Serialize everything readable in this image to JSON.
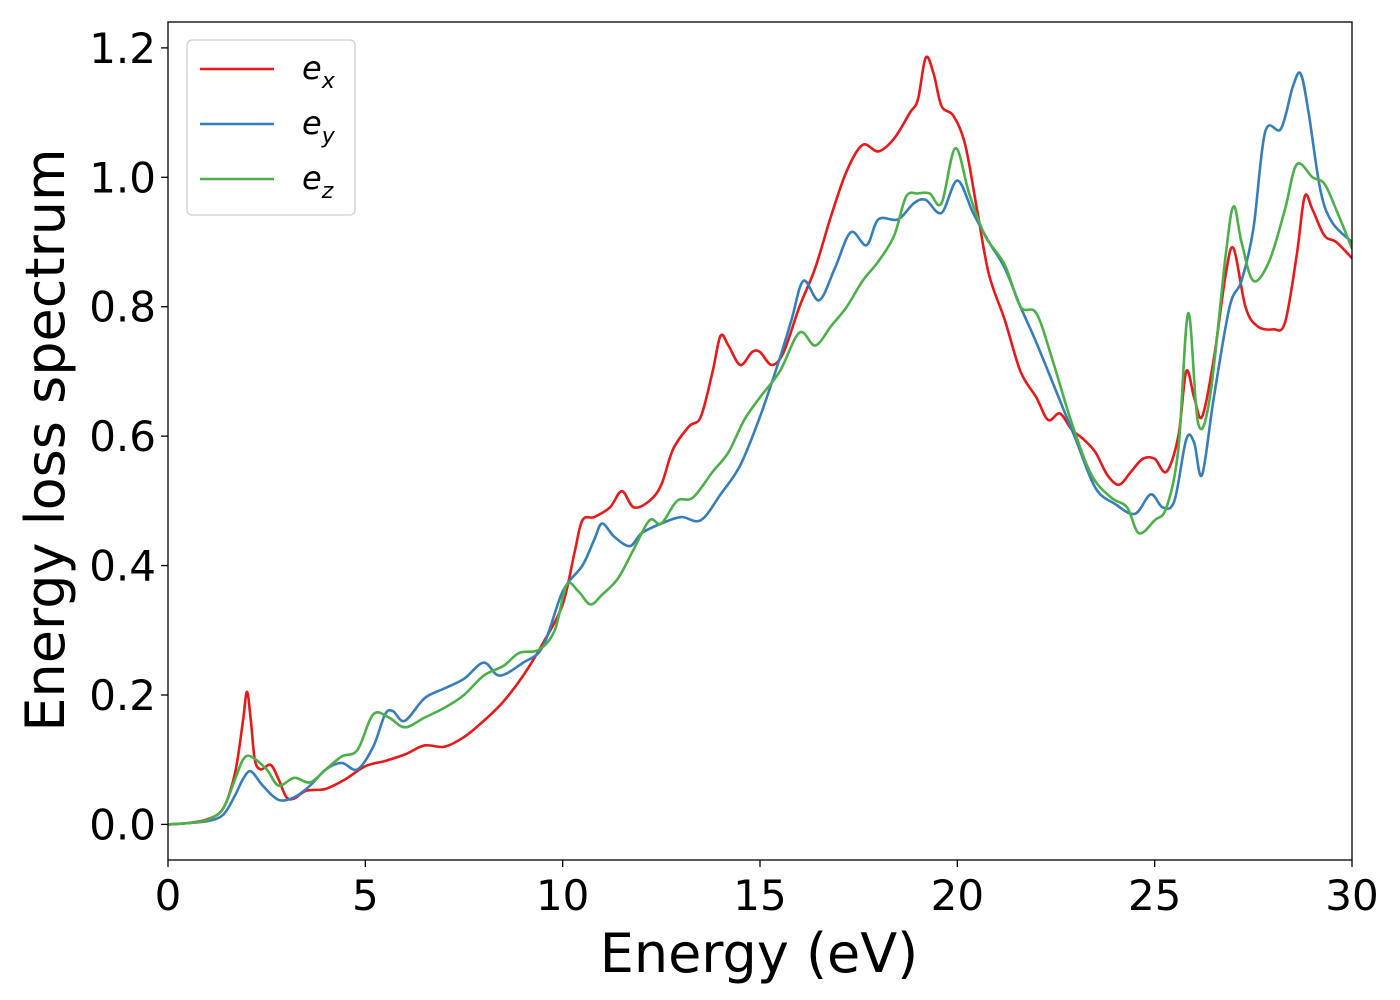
{
  "chart_data": {
    "type": "line",
    "xlabel": "Energy (eV)",
    "ylabel": "Energy loss spectrum",
    "xlim": [
      0,
      30
    ],
    "ylim": [
      -0.055,
      1.24
    ],
    "x_ticks": [
      0,
      5,
      10,
      15,
      20,
      25,
      30
    ],
    "x_tick_labels": [
      "0",
      "5",
      "10",
      "15",
      "20",
      "25",
      "30"
    ],
    "y_ticks": [
      0.0,
      0.2,
      0.4,
      0.6,
      0.8,
      1.0,
      1.2
    ],
    "y_tick_labels": [
      "0.0",
      "0.2",
      "0.4",
      "0.6",
      "0.8",
      "1.0",
      "1.2"
    ],
    "grid": false,
    "legend": {
      "position": "top-left"
    },
    "series": [
      {
        "name": "e_x",
        "legend_base": "e",
        "legend_sub": "x",
        "color": "#e41a1c",
        "points": [
          [
            0,
            0
          ],
          [
            0.5,
            0.002
          ],
          [
            1,
            0.008
          ],
          [
            1.4,
            0.025
          ],
          [
            1.7,
            0.08
          ],
          [
            1.9,
            0.16
          ],
          [
            2.0,
            0.205
          ],
          [
            2.1,
            0.16
          ],
          [
            2.2,
            0.1
          ],
          [
            2.35,
            0.085
          ],
          [
            2.6,
            0.092
          ],
          [
            2.8,
            0.07
          ],
          [
            3.0,
            0.042
          ],
          [
            3.2,
            0.04
          ],
          [
            3.5,
            0.052
          ],
          [
            4.0,
            0.055
          ],
          [
            4.5,
            0.07
          ],
          [
            5.0,
            0.09
          ],
          [
            5.5,
            0.098
          ],
          [
            6.0,
            0.108
          ],
          [
            6.5,
            0.122
          ],
          [
            7.0,
            0.12
          ],
          [
            7.5,
            0.135
          ],
          [
            8.0,
            0.16
          ],
          [
            8.5,
            0.19
          ],
          [
            9.0,
            0.23
          ],
          [
            9.5,
            0.28
          ],
          [
            10.0,
            0.34
          ],
          [
            10.3,
            0.42
          ],
          [
            10.5,
            0.47
          ],
          [
            10.8,
            0.475
          ],
          [
            11.2,
            0.49
          ],
          [
            11.5,
            0.515
          ],
          [
            11.8,
            0.49
          ],
          [
            12.2,
            0.5
          ],
          [
            12.5,
            0.525
          ],
          [
            12.8,
            0.58
          ],
          [
            13.2,
            0.615
          ],
          [
            13.5,
            0.63
          ],
          [
            13.8,
            0.7
          ],
          [
            14.0,
            0.755
          ],
          [
            14.2,
            0.74
          ],
          [
            14.5,
            0.71
          ],
          [
            14.8,
            0.73
          ],
          [
            15.0,
            0.73
          ],
          [
            15.3,
            0.71
          ],
          [
            15.6,
            0.73
          ],
          [
            16.0,
            0.8
          ],
          [
            16.4,
            0.86
          ],
          [
            16.8,
            0.94
          ],
          [
            17.2,
            1.01
          ],
          [
            17.6,
            1.05
          ],
          [
            18.0,
            1.04
          ],
          [
            18.4,
            1.06
          ],
          [
            18.8,
            1.1
          ],
          [
            19.0,
            1.12
          ],
          [
            19.2,
            1.185
          ],
          [
            19.4,
            1.16
          ],
          [
            19.6,
            1.11
          ],
          [
            19.9,
            1.095
          ],
          [
            20.2,
            1.05
          ],
          [
            20.5,
            0.95
          ],
          [
            20.8,
            0.85
          ],
          [
            21.2,
            0.78
          ],
          [
            21.6,
            0.7
          ],
          [
            22.0,
            0.66
          ],
          [
            22.3,
            0.625
          ],
          [
            22.6,
            0.635
          ],
          [
            22.9,
            0.61
          ],
          [
            23.2,
            0.595
          ],
          [
            23.5,
            0.575
          ],
          [
            23.8,
            0.54
          ],
          [
            24.1,
            0.525
          ],
          [
            24.4,
            0.545
          ],
          [
            24.7,
            0.565
          ],
          [
            25.0,
            0.565
          ],
          [
            25.3,
            0.545
          ],
          [
            25.6,
            0.6
          ],
          [
            25.8,
            0.7
          ],
          [
            26.0,
            0.66
          ],
          [
            26.2,
            0.63
          ],
          [
            26.5,
            0.72
          ],
          [
            26.8,
            0.85
          ],
          [
            27.0,
            0.89
          ],
          [
            27.3,
            0.8
          ],
          [
            27.6,
            0.77
          ],
          [
            28.0,
            0.765
          ],
          [
            28.3,
            0.775
          ],
          [
            28.6,
            0.88
          ],
          [
            28.8,
            0.97
          ],
          [
            29.0,
            0.95
          ],
          [
            29.3,
            0.91
          ],
          [
            29.6,
            0.9
          ],
          [
            30.0,
            0.875
          ]
        ]
      },
      {
        "name": "e_y",
        "legend_base": "e",
        "legend_sub": "y",
        "color": "#377eb8",
        "points": [
          [
            0,
            0
          ],
          [
            0.5,
            0.002
          ],
          [
            1,
            0.005
          ],
          [
            1.4,
            0.015
          ],
          [
            1.7,
            0.045
          ],
          [
            1.9,
            0.07
          ],
          [
            2.1,
            0.082
          ],
          [
            2.4,
            0.06
          ],
          [
            2.8,
            0.038
          ],
          [
            3.2,
            0.042
          ],
          [
            3.6,
            0.06
          ],
          [
            4.0,
            0.085
          ],
          [
            4.4,
            0.095
          ],
          [
            4.8,
            0.085
          ],
          [
            5.2,
            0.12
          ],
          [
            5.5,
            0.17
          ],
          [
            5.7,
            0.175
          ],
          [
            6.0,
            0.16
          ],
          [
            6.5,
            0.195
          ],
          [
            7.0,
            0.21
          ],
          [
            7.5,
            0.225
          ],
          [
            8.0,
            0.25
          ],
          [
            8.4,
            0.23
          ],
          [
            9.0,
            0.25
          ],
          [
            9.5,
            0.275
          ],
          [
            10.0,
            0.36
          ],
          [
            10.5,
            0.4
          ],
          [
            10.8,
            0.44
          ],
          [
            11.0,
            0.465
          ],
          [
            11.3,
            0.445
          ],
          [
            11.7,
            0.43
          ],
          [
            12.0,
            0.45
          ],
          [
            12.5,
            0.465
          ],
          [
            13.0,
            0.475
          ],
          [
            13.5,
            0.47
          ],
          [
            14.0,
            0.51
          ],
          [
            14.5,
            0.555
          ],
          [
            15.0,
            0.63
          ],
          [
            15.5,
            0.72
          ],
          [
            15.8,
            0.78
          ],
          [
            16.1,
            0.84
          ],
          [
            16.5,
            0.81
          ],
          [
            16.9,
            0.86
          ],
          [
            17.3,
            0.915
          ],
          [
            17.7,
            0.895
          ],
          [
            18.0,
            0.935
          ],
          [
            18.5,
            0.935
          ],
          [
            18.9,
            0.96
          ],
          [
            19.2,
            0.965
          ],
          [
            19.6,
            0.945
          ],
          [
            20.0,
            0.995
          ],
          [
            20.4,
            0.945
          ],
          [
            20.8,
            0.9
          ],
          [
            21.2,
            0.86
          ],
          [
            21.6,
            0.8
          ],
          [
            22.0,
            0.745
          ],
          [
            22.5,
            0.67
          ],
          [
            23.0,
            0.595
          ],
          [
            23.5,
            0.52
          ],
          [
            24.0,
            0.495
          ],
          [
            24.5,
            0.48
          ],
          [
            24.9,
            0.51
          ],
          [
            25.2,
            0.49
          ],
          [
            25.5,
            0.5
          ],
          [
            25.8,
            0.595
          ],
          [
            26.0,
            0.59
          ],
          [
            26.2,
            0.54
          ],
          [
            26.5,
            0.66
          ],
          [
            26.9,
            0.8
          ],
          [
            27.2,
            0.84
          ],
          [
            27.5,
            0.92
          ],
          [
            27.8,
            1.07
          ],
          [
            28.2,
            1.075
          ],
          [
            28.5,
            1.14
          ],
          [
            28.7,
            1.16
          ],
          [
            28.9,
            1.1
          ],
          [
            29.2,
            0.98
          ],
          [
            29.5,
            0.93
          ],
          [
            30.0,
            0.9
          ]
        ]
      },
      {
        "name": "e_z",
        "legend_base": "e",
        "legend_sub": "z",
        "color": "#4daf4a",
        "points": [
          [
            0,
            0
          ],
          [
            0.5,
            0.002
          ],
          [
            1,
            0.007
          ],
          [
            1.4,
            0.025
          ],
          [
            1.7,
            0.07
          ],
          [
            1.9,
            0.1
          ],
          [
            2.1,
            0.105
          ],
          [
            2.5,
            0.085
          ],
          [
            2.8,
            0.06
          ],
          [
            3.2,
            0.072
          ],
          [
            3.6,
            0.065
          ],
          [
            4.0,
            0.085
          ],
          [
            4.4,
            0.105
          ],
          [
            4.8,
            0.115
          ],
          [
            5.2,
            0.17
          ],
          [
            5.6,
            0.165
          ],
          [
            6.0,
            0.15
          ],
          [
            6.5,
            0.165
          ],
          [
            7.0,
            0.18
          ],
          [
            7.5,
            0.2
          ],
          [
            8.0,
            0.23
          ],
          [
            8.5,
            0.245
          ],
          [
            8.9,
            0.265
          ],
          [
            9.4,
            0.27
          ],
          [
            9.8,
            0.3
          ],
          [
            10.1,
            0.37
          ],
          [
            10.4,
            0.36
          ],
          [
            10.7,
            0.34
          ],
          [
            11.0,
            0.355
          ],
          [
            11.4,
            0.38
          ],
          [
            11.8,
            0.425
          ],
          [
            12.2,
            0.47
          ],
          [
            12.5,
            0.465
          ],
          [
            12.9,
            0.5
          ],
          [
            13.3,
            0.505
          ],
          [
            13.8,
            0.545
          ],
          [
            14.2,
            0.575
          ],
          [
            14.6,
            0.625
          ],
          [
            15.0,
            0.66
          ],
          [
            15.5,
            0.7
          ],
          [
            16.0,
            0.76
          ],
          [
            16.4,
            0.74
          ],
          [
            16.8,
            0.77
          ],
          [
            17.2,
            0.8
          ],
          [
            17.6,
            0.84
          ],
          [
            18.0,
            0.87
          ],
          [
            18.4,
            0.91
          ],
          [
            18.7,
            0.97
          ],
          [
            19.0,
            0.975
          ],
          [
            19.3,
            0.975
          ],
          [
            19.6,
            0.96
          ],
          [
            19.95,
            1.045
          ],
          [
            20.3,
            0.975
          ],
          [
            20.7,
            0.91
          ],
          [
            21.2,
            0.865
          ],
          [
            21.6,
            0.8
          ],
          [
            22.0,
            0.79
          ],
          [
            22.4,
            0.72
          ],
          [
            22.9,
            0.62
          ],
          [
            23.4,
            0.54
          ],
          [
            23.9,
            0.505
          ],
          [
            24.3,
            0.49
          ],
          [
            24.6,
            0.45
          ],
          [
            25.0,
            0.47
          ],
          [
            25.3,
            0.49
          ],
          [
            25.6,
            0.58
          ],
          [
            25.85,
            0.79
          ],
          [
            26.1,
            0.62
          ],
          [
            26.4,
            0.66
          ],
          [
            26.8,
            0.88
          ],
          [
            27.0,
            0.955
          ],
          [
            27.2,
            0.9
          ],
          [
            27.5,
            0.84
          ],
          [
            27.9,
            0.87
          ],
          [
            28.3,
            0.95
          ],
          [
            28.6,
            1.02
          ],
          [
            29.0,
            1.0
          ],
          [
            29.3,
            0.99
          ],
          [
            29.6,
            0.95
          ],
          [
            30.0,
            0.89
          ]
        ]
      }
    ]
  }
}
